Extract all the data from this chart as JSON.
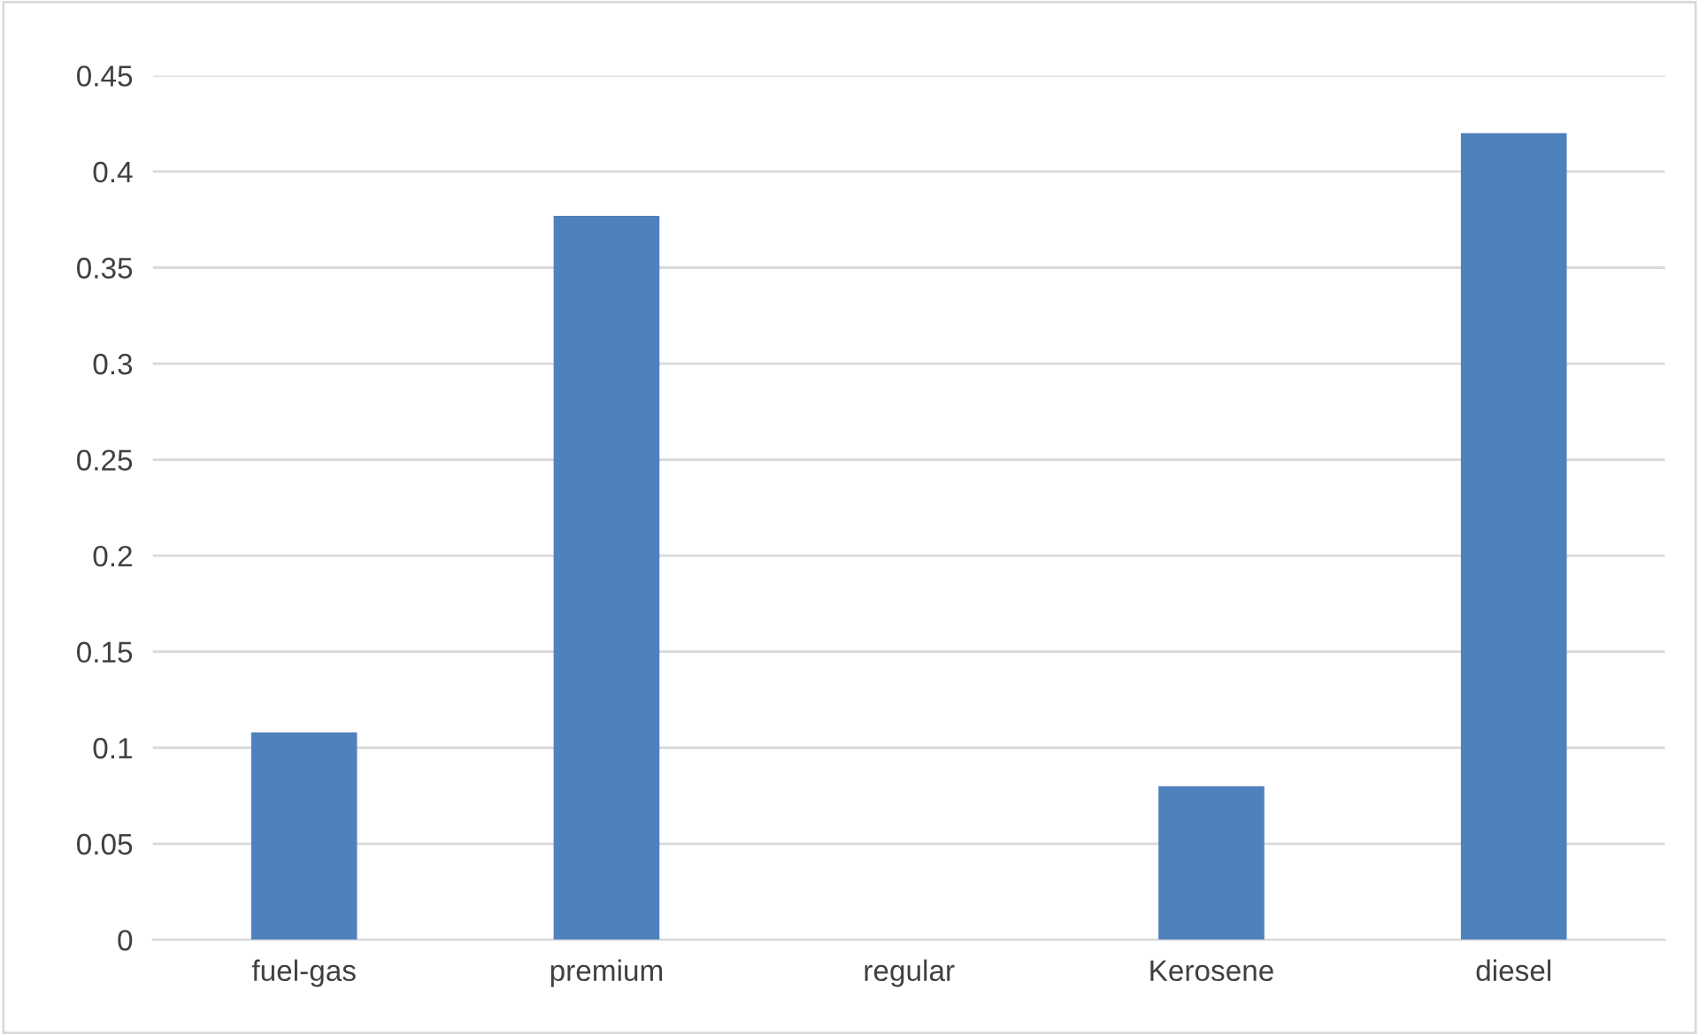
{
  "chart_data": {
    "type": "bar",
    "categories": [
      "fuel-gas",
      "premium",
      "regular",
      "Kerosene",
      "diesel"
    ],
    "values": [
      0.108,
      0.377,
      0,
      0.08,
      0.42
    ],
    "color": "#4f81bd",
    "ylim": [
      0,
      0.45
    ],
    "yticks": [
      0,
      0.05,
      0.1,
      0.15,
      0.2,
      0.25,
      0.3,
      0.35,
      0.4,
      0.45
    ],
    "grid": "y"
  }
}
